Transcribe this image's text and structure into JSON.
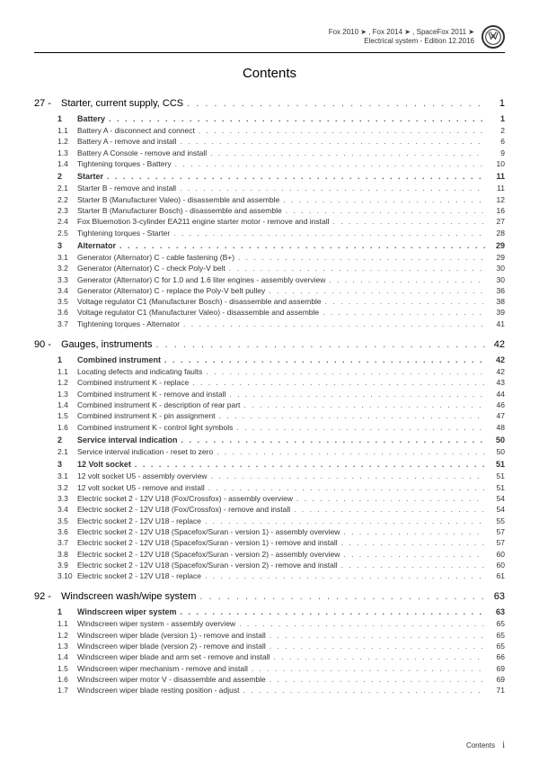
{
  "header": {
    "line1": "Fox 2010 ➤ , Fox 2014 ➤ , SpaceFox 2011 ➤",
    "line2": "Electrical system - Edition 12.2016"
  },
  "title": "Contents",
  "chapters": [
    {
      "num": "27 -",
      "label": "Starter, current supply, CCS",
      "page": "1",
      "sections": [
        {
          "num": "1",
          "label": "Battery",
          "page": "1",
          "subs": [
            {
              "num": "1.1",
              "label": "Battery A - disconnect and connect",
              "page": "2"
            },
            {
              "num": "1.2",
              "label": "Battery A - remove and install",
              "page": "6"
            },
            {
              "num": "1.3",
              "label": "Battery A Console - remove and install",
              "page": "9"
            },
            {
              "num": "1.4",
              "label": "Tightening torques - Battery",
              "page": "10"
            }
          ]
        },
        {
          "num": "2",
          "label": "Starter",
          "page": "11",
          "subs": [
            {
              "num": "2.1",
              "label": "Starter B - remove and install",
              "page": "11"
            },
            {
              "num": "2.2",
              "label": "Starter B (Manufacturer Valeo) - disassemble and assemble",
              "page": "12"
            },
            {
              "num": "2.3",
              "label": "Starter B (Manufacturer Bosch) - disassemble and assemble",
              "page": "16"
            },
            {
              "num": "2.4",
              "label": "Fox Bluemotion 3-cylinder EA211 engine starter motor - remove and install",
              "page": "27"
            },
            {
              "num": "2.5",
              "label": "Tightening torques - Starter",
              "page": "28"
            }
          ]
        },
        {
          "num": "3",
          "label": "Alternator",
          "page": "29",
          "subs": [
            {
              "num": "3.1",
              "label": "Generator (Alternator) C - cable fastening (B+)",
              "page": "29"
            },
            {
              "num": "3.2",
              "label": "Generator (Alternator) C - check Poly-V belt",
              "page": "30"
            },
            {
              "num": "3.3",
              "label": "Generator (Alternator) C for 1.0 and 1.6 liter engines - assembly overview",
              "page": "30"
            },
            {
              "num": "3.4",
              "label": "Generator (Alternator) C - replace the Poly-V belt pulley",
              "page": "36"
            },
            {
              "num": "3.5",
              "label": "Voltage regulator C1 (Manufacturer Bosch) - disassemble and assemble",
              "page": "38"
            },
            {
              "num": "3.6",
              "label": "Voltage regulator C1 (Manufacturer Valeo) - disassemble and assemble",
              "page": "39"
            },
            {
              "num": "3.7",
              "label": "Tightening torques - Alternator",
              "page": "41"
            }
          ]
        }
      ]
    },
    {
      "num": "90 -",
      "label": "Gauges, instruments",
      "page": "42",
      "sections": [
        {
          "num": "1",
          "label": "Combined instrument",
          "page": "42",
          "subs": [
            {
              "num": "1.1",
              "label": "Locating defects and indicating faults",
              "page": "42"
            },
            {
              "num": "1.2",
              "label": "Combined instrument K - replace",
              "page": "43"
            },
            {
              "num": "1.3",
              "label": "Combined instrument K - remove and install",
              "page": "44"
            },
            {
              "num": "1.4",
              "label": "Combined instrument K - description of rear part",
              "page": "46"
            },
            {
              "num": "1.5",
              "label": "Combined instrument K - pin assignment",
              "page": "47"
            },
            {
              "num": "1.6",
              "label": "Combined instrument K - control light symbols",
              "page": "48"
            }
          ]
        },
        {
          "num": "2",
          "label": "Service interval indication",
          "page": "50",
          "subs": [
            {
              "num": "2.1",
              "label": "Service interval indication - reset to zero",
              "page": "50"
            }
          ]
        },
        {
          "num": "3",
          "label": "12 Volt socket",
          "page": "51",
          "subs": [
            {
              "num": "3.1",
              "label": "12 volt socket U5 - assembly overview",
              "page": "51"
            },
            {
              "num": "3.2",
              "label": "12 volt socket U5 - remove and install",
              "page": "51"
            },
            {
              "num": "3.3",
              "label": "Electric socket 2 - 12V U18 (Fox/Crossfox) - assembly overview",
              "page": "54"
            },
            {
              "num": "3.4",
              "label": "Electric socket 2 - 12V U18 (Fox/Crossfox) - remove and install",
              "page": "54"
            },
            {
              "num": "3.5",
              "label": "Electric socket 2 - 12V U18 - replace",
              "page": "55"
            },
            {
              "num": "3.6",
              "label": "Electric socket 2 - 12V U18 (Spacefox/Suran - version 1) - assembly overview",
              "page": "57"
            },
            {
              "num": "3.7",
              "label": "Electric socket 2 - 12V U18 (Spacefox/Suran - version 1) - remove and install",
              "page": "57"
            },
            {
              "num": "3.8",
              "label": "Electric socket 2 - 12V U18 (Spacefox/Suran - version 2) - assembly overview",
              "page": "60"
            },
            {
              "num": "3.9",
              "label": "Electric socket 2 - 12V U18 (Spacefox/Suran - version 2) - remove and install",
              "page": "60"
            },
            {
              "num": "3.10",
              "label": "Electric socket 2 - 12V U18 - replace",
              "page": "61"
            }
          ]
        }
      ]
    },
    {
      "num": "92 -",
      "label": "Windscreen wash/wipe system",
      "page": "63",
      "sections": [
        {
          "num": "1",
          "label": "Windscreen wiper system",
          "page": "63",
          "subs": [
            {
              "num": "1.1",
              "label": "Windscreen wiper system - assembly overview",
              "page": "65"
            },
            {
              "num": "1.2",
              "label": "Windscreen wiper blade (version 1) - remove and install",
              "page": "65"
            },
            {
              "num": "1.3",
              "label": "Windscreen wiper blade (version 2) - remove and install",
              "page": "65"
            },
            {
              "num": "1.4",
              "label": "Windscreen wiper blade and arm set - remove and install",
              "page": "66"
            },
            {
              "num": "1.5",
              "label": "Windscreen wiper mechanism - remove and install",
              "page": "69"
            },
            {
              "num": "1.6",
              "label": "Windscreen wiper motor V - disassemble and assemble",
              "page": "69"
            },
            {
              "num": "1.7",
              "label": "Windscreen wiper blade resting position - adjust",
              "page": "71"
            }
          ]
        }
      ]
    }
  ],
  "footer": {
    "label": "Contents",
    "roman": "i"
  }
}
